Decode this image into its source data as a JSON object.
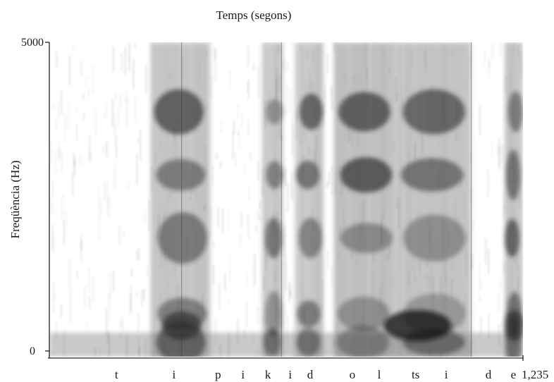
{
  "chart_data": {
    "type": "heatmap",
    "title": "Temps (segons)",
    "xlabel": "Temps (segons)",
    "ylabel": "Freqüència (Hz)",
    "xlim": [
      0,
      1.235
    ],
    "ylim": [
      0,
      5000
    ],
    "x_end_label": "1,235",
    "y_tick_labels": [
      "5000",
      "0"
    ],
    "segments": [
      {
        "label": "t",
        "start": 0.27,
        "end": 0.3,
        "energy": 0.15
      },
      {
        "label": "i",
        "start": 0.3,
        "end": 0.505,
        "energy": 0.75
      },
      {
        "label": "p",
        "start": 0.505,
        "end": 0.61,
        "energy": 0.1
      },
      {
        "label": "i",
        "start": 0.61,
        "end": 0.705,
        "energy": 0.65
      },
      {
        "label": "k",
        "start": 0.705,
        "end": 0.76,
        "energy": 0.2
      },
      {
        "label": "i",
        "start": 0.76,
        "end": 0.82,
        "energy": 0.7
      },
      {
        "label": "d",
        "start": 0.82,
        "end": 0.9,
        "energy": 0.3
      },
      {
        "label": "o",
        "start": 0.9,
        "end": 1.0,
        "energy": 0.85
      },
      {
        "label": "l",
        "start": 1.0,
        "end": 1.06,
        "energy": 0.6
      },
      {
        "label": "ts",
        "start": 1.06,
        "end": 1.12,
        "energy": 0.55
      },
      {
        "label": "i",
        "start": 1.12,
        "end": 1.16,
        "energy": 0.7
      },
      {
        "label": "d",
        "start": 1.16,
        "end": 1.2,
        "energy": 0.25
      },
      {
        "label": "e",
        "start": 1.2,
        "end": 1.235,
        "energy": 0.7
      }
    ],
    "phoneme_labels": [
      {
        "label": "t",
        "x": 0.175
      },
      {
        "label": "i",
        "x": 0.325
      },
      {
        "label": "p",
        "x": 0.44
      },
      {
        "label": "i",
        "x": 0.505
      },
      {
        "label": "k",
        "x": 0.57
      },
      {
        "label": "i",
        "x": 0.628
      },
      {
        "label": "d",
        "x": 0.68
      },
      {
        "label": "o",
        "x": 0.79
      },
      {
        "label": "l",
        "x": 0.86
      },
      {
        "label": "ts",
        "x": 0.955
      },
      {
        "label": "i",
        "x": 1.035
      },
      {
        "label": "d",
        "x": 1.145
      },
      {
        "label": "e",
        "x": 1.21
      }
    ],
    "dark_bands": [
      {
        "x0": 0.265,
        "x1": 0.42,
        "energy": 0.8
      },
      {
        "x0": 0.555,
        "x1": 0.61,
        "energy": 0.7
      },
      {
        "x0": 0.64,
        "x1": 0.715,
        "energy": 0.75
      },
      {
        "x0": 0.742,
        "x1": 0.905,
        "energy": 0.85
      },
      {
        "x0": 0.905,
        "x1": 1.1,
        "energy": 0.8
      },
      {
        "x0": 1.188,
        "x1": 1.235,
        "energy": 0.8
      }
    ],
    "grid": false,
    "legend": "none",
    "colormap": "grayscale"
  }
}
